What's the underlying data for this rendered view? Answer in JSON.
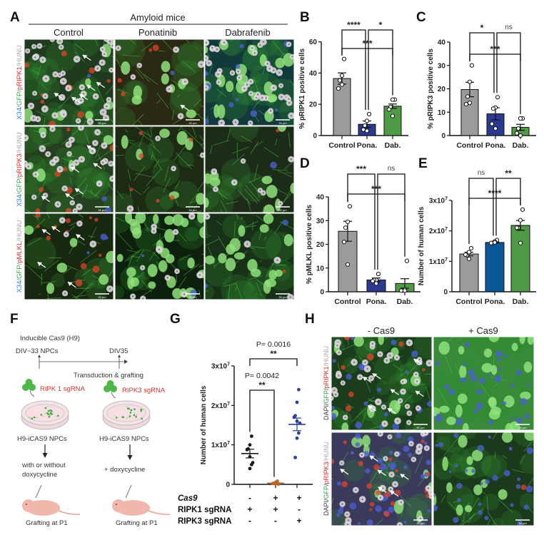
{
  "panel_letters": {
    "a": "A",
    "b": "B",
    "c": "C",
    "d": "D",
    "e": "E",
    "f": "F",
    "g": "G",
    "h": "H"
  },
  "panel_a": {
    "group_title": "Amyloid mice",
    "columns": [
      "Control",
      "Ponatinib",
      "Dabrafenib"
    ],
    "row_labels": [
      [
        {
          "t": "X34",
          "c": "#2f7fd6"
        },
        {
          "t": "/",
          "c": "#888888"
        },
        {
          "t": "GFP",
          "c": "#2ea84a"
        },
        {
          "t": "/",
          "c": "#888888"
        },
        {
          "t": "pRIPK1",
          "c": "#e02a2a"
        },
        {
          "t": "/HUNU",
          "c": "#aaaaaa"
        }
      ],
      [
        {
          "t": "X34",
          "c": "#2f7fd6"
        },
        {
          "t": "/",
          "c": "#888888"
        },
        {
          "t": "GFP",
          "c": "#2ea84a"
        },
        {
          "t": "/",
          "c": "#888888"
        },
        {
          "t": "pRIPK3",
          "c": "#e02a2a"
        },
        {
          "t": "/HUNU",
          "c": "#aaaaaa"
        }
      ],
      [
        {
          "t": "X34",
          "c": "#2f7fd6"
        },
        {
          "t": "/",
          "c": "#888888"
        },
        {
          "t": "GFP",
          "c": "#2ea84a"
        },
        {
          "t": "/",
          "c": "#888888"
        },
        {
          "t": "pMLKL",
          "c": "#e02a2a"
        },
        {
          "t": "/HUNU",
          "c": "#aaaaaa"
        }
      ]
    ],
    "scale_bar": "30 µm"
  },
  "panel_f": {
    "line1": "Inducible Cas9 (H9)",
    "t_start": "DIV~33 NPCs",
    "t_end": "DIV35",
    "step": "Transduction & grafting",
    "sg1": "RIPK  1 sgRNA",
    "sg3": "RIPK3 sgRNA",
    "cells1": "H9-iCAS9 NPCs",
    "cells2": "H9-iCAS9 NPCs",
    "treat1a": "with or without",
    "treat1b": "doxycycline",
    "treat2": "+ doxycycline",
    "graft1": "Grafting at P1",
    "graft2": "Grafting at P1"
  },
  "panel_g_conditions": {
    "rows": [
      {
        "label": "Cas9",
        "italic": true,
        "values": [
          "-",
          "+",
          "+"
        ]
      },
      {
        "label": "RIPK1 sgRNA",
        "italic": false,
        "values": [
          "+",
          "+",
          "-"
        ]
      },
      {
        "label": "RIPK3 sgRNA",
        "italic": false,
        "values": [
          "-",
          "-",
          "+"
        ]
      }
    ]
  },
  "panel_h": {
    "columns": [
      "- Cas9",
      "+ Cas9"
    ],
    "row_labels": [
      [
        {
          "t": "DAPI/",
          "c": "#444444"
        },
        {
          "t": "GFP",
          "c": "#2ea84a"
        },
        {
          "t": "/",
          "c": "#444444"
        },
        {
          "t": "pRIPK1",
          "c": "#e02a2a"
        },
        {
          "t": "/HUNU",
          "c": "#aaaaaa"
        }
      ],
      [
        {
          "t": "DAPI/",
          "c": "#444444"
        },
        {
          "t": "GFP",
          "c": "#2ea84a"
        },
        {
          "t": "/",
          "c": "#444444"
        },
        {
          "t": "pRIPK3",
          "c": "#e02a2a"
        },
        {
          "t": "/HUNU",
          "c": "#aaaaaa"
        }
      ]
    ],
    "scale_bar": "30 µm"
  },
  "chart_data": [
    {
      "id": "B",
      "type": "bar",
      "ylabel": "% pRIPK1 positive cells",
      "ylim": [
        0,
        60
      ],
      "ticks": [
        "0",
        "20",
        "40",
        "60"
      ],
      "tick_values": [
        0,
        20,
        40,
        60
      ],
      "categories": [
        "Control",
        "Pona.",
        " Dab."
      ],
      "colors": [
        "#9b9b9b",
        "#2b3990",
        "#4e9a45"
      ],
      "means": [
        36.5,
        7.2,
        18.8
      ],
      "sem": [
        3.6,
        2.1,
        1.4
      ],
      "points": [
        [
          49,
          38.4,
          35.3,
          30.1,
          32.6
        ],
        [
          13.7,
          9.4,
          6.4,
          3.8,
          3
        ],
        [
          23,
          23,
          18.3,
          16.7,
          12.5
        ]
      ],
      "significance": [
        {
          "from": 0,
          "to": 2,
          "label": "***",
          "level": 1
        },
        {
          "from": 0,
          "to": 1,
          "label": "****",
          "level": 0
        },
        {
          "from": 1,
          "to": 2,
          "label": "*",
          "level": 0
        }
      ]
    },
    {
      "id": "C",
      "type": "bar",
      "ylabel": "% pRIPK3 positive cells",
      "ylim": [
        0,
        40
      ],
      "ticks": [
        "0",
        "10",
        "20",
        "30",
        "40"
      ],
      "tick_values": [
        0,
        10,
        20,
        30,
        40
      ],
      "categories": [
        "Control",
        "Pona.",
        "Dab."
      ],
      "colors": [
        "#9b9b9b",
        "#2b3990",
        "#4e9a45"
      ],
      "means": [
        19.7,
        9.3,
        3.5
      ],
      "sem": [
        3.1,
        2.6,
        1.3
      ],
      "points": [
        [
          30,
          23,
          16.7,
          13.4,
          14
        ],
        [
          16.4,
          12,
          11.5,
          5,
          3
        ],
        [
          7.3,
          7.3,
          3,
          1,
          0
        ]
      ],
      "significance": [
        {
          "from": 0,
          "to": 2,
          "label": "***",
          "level": 1
        },
        {
          "from": 0,
          "to": 1,
          "label": "*",
          "level": 0
        },
        {
          "from": 1,
          "to": 2,
          "label": "ns",
          "level": 0
        }
      ]
    },
    {
      "id": "D",
      "type": "bar",
      "ylabel": "% pMLKL positive cells",
      "ylim": [
        0,
        40
      ],
      "ticks": [
        "0",
        "10",
        "20",
        "30",
        "40"
      ],
      "tick_values": [
        0,
        10,
        20,
        30,
        40
      ],
      "categories": [
        "Control",
        "Pona.",
        "Dab."
      ],
      "colors": [
        "#9b9b9b",
        "#2b3990",
        "#4e9a45"
      ],
      "means": [
        25.5,
        5,
        3.5
      ],
      "sem": [
        4.2,
        0.8,
        2
      ],
      "points": [
        [
          36,
          29.5,
          27,
          21,
          11.5
        ],
        [
          7.5,
          5,
          5,
          4.5,
          3.5
        ],
        [
          13,
          1,
          0.5,
          0.5,
          0.5
        ]
      ],
      "significance": [
        {
          "from": 0,
          "to": 2,
          "label": "***",
          "level": 1
        },
        {
          "from": 0,
          "to": 1,
          "label": "***",
          "level": 0
        },
        {
          "from": 1,
          "to": 2,
          "label": "ns",
          "level": 0
        }
      ]
    },
    {
      "id": "E",
      "type": "bar",
      "ylabel": "Number of human cells",
      "ylim": [
        0,
        30000000
      ],
      "ticks": [
        "0",
        "1x10^7",
        "2x10^7",
        "3x10^7"
      ],
      "tick_values": [
        0,
        10000000,
        20000000,
        30000000
      ],
      "categories": [
        "Control",
        "Pona.",
        "Dab."
      ],
      "colors": [
        "#9b9b9b",
        "#0a5796",
        "#4e9a45"
      ],
      "means": [
        12400000,
        16200000,
        21800000
      ],
      "sem": [
        600000,
        200000,
        1600000
      ],
      "points": [
        [
          14300000,
          13000000,
          12000000,
          12200000,
          10800000
        ],
        [
          17000000,
          16500000,
          16000000,
          16000000,
          16200000
        ],
        [
          27000000,
          23500000,
          21000000,
          21000000,
          16000000
        ]
      ],
      "significance": [
        {
          "from": 0,
          "to": 2,
          "label": "****",
          "level": 1
        },
        {
          "from": 0,
          "to": 1,
          "label": "ns",
          "level": 0
        },
        {
          "from": 1,
          "to": 2,
          "label": "**",
          "level": 0
        }
      ]
    },
    {
      "id": "G",
      "type": "scatter",
      "ylabel": "Number of human cells",
      "ylim": [
        0,
        30000000
      ],
      "ticks": [
        "0",
        "1x10^7",
        "2x10^7",
        "3x10^7"
      ],
      "tick_values": [
        0,
        10000000,
        20000000,
        30000000
      ],
      "categories": [
        "1",
        "2",
        "3"
      ],
      "colors": [
        "#1a1a1a",
        "#b8692a",
        "#2b3f9e"
      ],
      "means": [
        7800000,
        300000,
        15200000
      ],
      "sem": [
        1100000,
        100000,
        1600000
      ],
      "points": [
        [
          12200000,
          10000000,
          9000000,
          8800000,
          7000000,
          5500000,
          5000000,
          4000000
        ],
        [
          800000,
          500000,
          300000,
          200000,
          100000,
          50000
        ],
        [
          24000000,
          20800000,
          17400000,
          17000000,
          16000000,
          15500000,
          13000000,
          11700000,
          6800000
        ]
      ],
      "significance": [
        {
          "from": 0,
          "to": 1,
          "label": "**",
          "p": "P= 0.0042",
          "level": 0
        },
        {
          "from": 0,
          "to": 2,
          "label": "**",
          "p": "P= 0.0016",
          "level": 1
        }
      ]
    }
  ]
}
